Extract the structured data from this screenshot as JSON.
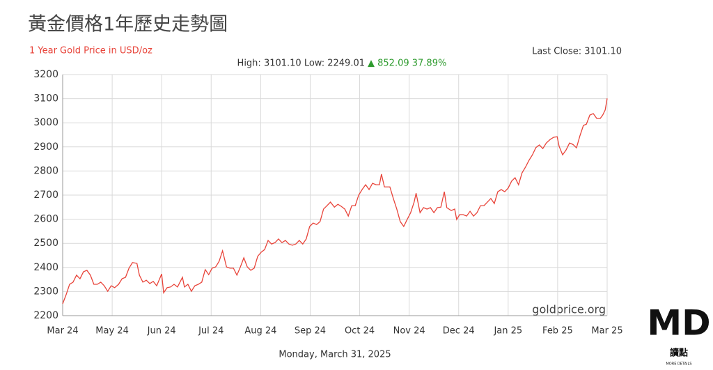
{
  "chart_data": {
    "type": "line",
    "title": "黃金價格1年歷史走勢圖",
    "subtitle": "1 Year Gold Price in USD/oz",
    "stats": "High: 3101.10 Low: 2249.01",
    "change": "▲ 852.09 37.89%",
    "last_close": "Last Close: 3101.10",
    "source": "goldprice.org",
    "date": "Monday, March 31, 2025",
    "color": "#e8443a",
    "grid": true,
    "x": [
      0.0,
      0.07,
      0.14,
      0.21,
      0.28,
      0.35,
      0.42,
      0.49,
      0.56,
      0.63,
      0.7,
      0.77,
      0.84,
      0.91,
      0.98,
      1.05,
      1.13,
      1.2,
      1.27,
      1.34,
      1.41,
      1.5,
      1.55,
      1.62,
      1.69,
      1.76,
      1.83,
      1.9,
      2.0,
      2.04,
      2.11,
      2.18,
      2.25,
      2.32,
      2.42,
      2.46,
      2.53,
      2.6,
      2.67,
      2.74,
      2.81,
      2.88,
      2.95,
      3.02,
      3.09,
      3.16,
      3.23,
      3.31,
      3.38,
      3.45,
      3.52,
      3.59,
      3.66,
      3.73,
      3.8,
      3.87,
      3.94,
      4.01,
      4.08,
      4.15,
      4.22,
      4.29,
      4.36,
      4.43,
      4.5,
      4.57,
      4.64,
      4.71,
      4.78,
      4.85,
      4.92,
      4.99,
      5.06,
      5.13,
      5.2,
      5.27,
      5.34,
      5.41,
      5.49,
      5.56,
      5.63,
      5.7,
      5.77,
      5.84,
      5.91,
      5.98,
      6.05,
      6.12,
      6.19,
      6.26,
      6.33,
      6.4,
      6.44,
      6.5,
      6.57,
      6.61,
      6.68,
      6.75,
      6.82,
      6.89,
      6.96,
      7.03,
      7.1,
      7.14,
      7.22,
      7.29,
      7.36,
      7.43,
      7.5,
      7.57,
      7.64,
      7.71,
      7.76,
      7.85,
      7.92,
      7.96,
      8.02,
      8.09,
      8.16,
      8.23,
      8.3,
      8.37,
      8.44,
      8.51,
      8.58,
      8.65,
      8.72,
      8.79,
      8.86,
      8.93,
      9.0,
      9.07,
      9.14,
      9.21,
      9.28,
      9.35,
      9.42,
      9.49,
      9.56,
      9.63,
      9.7,
      9.77,
      9.85,
      9.92,
      9.99,
      10.03,
      10.1,
      10.17,
      10.24,
      10.31,
      10.38,
      10.45,
      10.52,
      10.58,
      10.65,
      10.72,
      10.79,
      10.86,
      10.91,
      10.96,
      11.0
    ],
    "values": [
      2249.01,
      2287,
      2330,
      2339,
      2368,
      2353,
      2382,
      2388,
      2368,
      2330,
      2330,
      2339,
      2324,
      2301,
      2324,
      2316,
      2330,
      2353,
      2359,
      2397,
      2420,
      2417,
      2368,
      2339,
      2347,
      2333,
      2342,
      2324,
      2373,
      2295,
      2316,
      2319,
      2330,
      2319,
      2359,
      2319,
      2330,
      2301,
      2324,
      2330,
      2339,
      2391,
      2370,
      2397,
      2402,
      2425,
      2469,
      2402,
      2397,
      2397,
      2368,
      2402,
      2440,
      2402,
      2388,
      2397,
      2446,
      2463,
      2474,
      2512,
      2497,
      2503,
      2518,
      2503,
      2512,
      2497,
      2492,
      2497,
      2512,
      2497,
      2518,
      2570,
      2584,
      2578,
      2590,
      2642,
      2656,
      2671,
      2650,
      2662,
      2653,
      2642,
      2613,
      2656,
      2656,
      2700,
      2723,
      2743,
      2723,
      2749,
      2743,
      2743,
      2787,
      2734,
      2734,
      2734,
      2686,
      2642,
      2590,
      2570,
      2599,
      2627,
      2671,
      2708,
      2627,
      2648,
      2642,
      2648,
      2627,
      2648,
      2650,
      2714,
      2648,
      2636,
      2642,
      2599,
      2619,
      2619,
      2613,
      2633,
      2613,
      2627,
      2656,
      2656,
      2671,
      2686,
      2665,
      2714,
      2723,
      2714,
      2729,
      2758,
      2772,
      2743,
      2792,
      2816,
      2844,
      2867,
      2897,
      2908,
      2893,
      2916,
      2931,
      2940,
      2942,
      2902,
      2867,
      2887,
      2916,
      2910,
      2896,
      2946,
      2989,
      2994,
      3032,
      3038,
      3018,
      3018,
      3032,
      3053,
      3101.1
    ],
    "xlim": [
      0,
      11
    ],
    "xticks": [
      {
        "value": 0,
        "label": "Mar 24"
      },
      {
        "value": 1,
        "label": "May 24"
      },
      {
        "value": 2,
        "label": "Jun 24"
      },
      {
        "value": 3,
        "label": "Jul 24"
      },
      {
        "value": 4,
        "label": "Aug 24"
      },
      {
        "value": 5,
        "label": "Sep 24"
      },
      {
        "value": 6,
        "label": "Oct 24"
      },
      {
        "value": 7,
        "label": "Nov 24"
      },
      {
        "value": 8,
        "label": "Dec 24"
      },
      {
        "value": 9,
        "label": "Jan 25"
      },
      {
        "value": 10,
        "label": "Feb 25"
      },
      {
        "value": 11,
        "label": "Mar 25"
      }
    ],
    "ylim": [
      2200,
      3200
    ],
    "yticks": [
      2200,
      2300,
      2400,
      2500,
      2600,
      2700,
      2800,
      2900,
      3000,
      3100,
      3200
    ]
  },
  "logo": {
    "mark": "MD",
    "text": "讀點",
    "tagline": "MORE DETAILS"
  }
}
